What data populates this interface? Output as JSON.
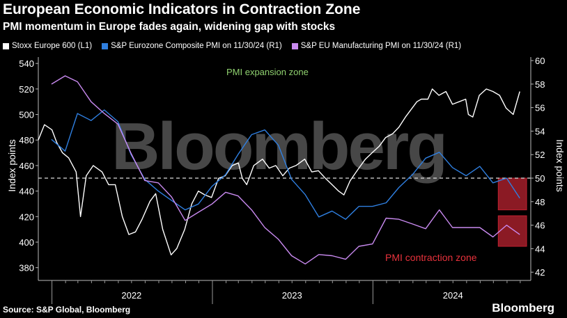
{
  "header": {
    "title": "European Economic Indicators in Contraction Zone",
    "subtitle": "PMI momentum in Europe fades again, widening gap with stocks"
  },
  "legend": [
    {
      "label": "Stoxx Europe 600 (L1)",
      "color": "#ffffff"
    },
    {
      "label": "S&P Eurozone Composite PMI on 11/30/24 (R1)",
      "color": "#2f7fe0"
    },
    {
      "label": "S&P EU Manufacturing PMI on 11/30/24 (R1)",
      "color": "#c98af0"
    }
  ],
  "footer": {
    "source": "Source: S&P Global, Bloomberg",
    "brand": "Bloomberg"
  },
  "watermark": "Bloomberg",
  "chart_data": {
    "type": "line",
    "x_years": [
      "2022",
      "2023",
      "2024"
    ],
    "y_left": {
      "label": "Index points",
      "ticks": [
        380,
        400,
        420,
        440,
        460,
        480,
        500,
        520,
        540
      ],
      "range": [
        370,
        545
      ]
    },
    "y_right": {
      "label": "Index points",
      "ticks": [
        42,
        44,
        46,
        48,
        50,
        52,
        54,
        56,
        58,
        60
      ],
      "range": [
        41.3,
        60.3
      ]
    },
    "reference_line": {
      "value": 50,
      "axis": "right"
    },
    "annotations": {
      "expansion": "PMI expansion zone",
      "contraction": "PMI contraction zone"
    },
    "colors": {
      "stoxx": "#ffffff",
      "composite": "#2f7fe0",
      "manufacturing": "#c98af0",
      "contraction_box": "#8b1a24",
      "contraction_text": "#e8323c",
      "expansion_text": "#8fd16f"
    },
    "series": [
      {
        "name": "Stoxx Europe 600 (L1)",
        "axis": "left",
        "x": [
          "2021-12-01",
          "2021-12-15",
          "2022-01-01",
          "2022-01-12",
          "2022-01-25",
          "2022-02-08",
          "2022-02-25",
          "2022-03-07",
          "2022-03-20",
          "2022-04-05",
          "2022-04-25",
          "2022-05-10",
          "2022-05-25",
          "2022-06-10",
          "2022-06-25",
          "2022-07-10",
          "2022-07-25",
          "2022-08-12",
          "2022-08-25",
          "2022-09-10",
          "2022-09-29",
          "2022-10-12",
          "2022-10-30",
          "2022-11-15",
          "2022-11-30",
          "2022-12-15",
          "2022-12-30",
          "2023-01-15",
          "2023-01-30",
          "2023-02-15",
          "2023-03-01",
          "2023-03-10",
          "2023-03-20",
          "2023-04-05",
          "2023-04-25",
          "2023-05-10",
          "2023-05-25",
          "2023-06-10",
          "2023-06-25",
          "2023-07-10",
          "2023-07-30",
          "2023-08-15",
          "2023-08-30",
          "2023-09-15",
          "2023-09-30",
          "2023-10-15",
          "2023-10-27",
          "2023-11-10",
          "2023-11-30",
          "2023-12-15",
          "2023-12-30",
          "2024-01-15",
          "2024-01-30",
          "2024-02-15",
          "2024-02-29",
          "2024-03-15",
          "2024-03-30",
          "2024-04-10",
          "2024-04-20",
          "2024-05-05",
          "2024-05-15",
          "2024-05-30",
          "2024-06-15",
          "2024-06-30",
          "2024-07-15",
          "2024-07-30",
          "2024-08-05",
          "2024-08-15",
          "2024-08-30",
          "2024-09-15",
          "2024-09-30",
          "2024-10-15",
          "2024-10-30",
          "2024-11-15",
          "2024-11-30"
        ],
        "values": [
          480,
          492,
          488,
          478,
          470,
          466,
          455,
          420,
          452,
          460,
          455,
          445,
          445,
          420,
          406,
          408,
          418,
          432,
          438,
          410,
          390,
          395,
          410,
          430,
          440,
          437,
          435,
          450,
          452,
          460,
          462,
          450,
          445,
          460,
          465,
          458,
          460,
          452,
          458,
          460,
          465,
          455,
          456,
          450,
          445,
          440,
          437,
          448,
          458,
          465,
          470,
          475,
          482,
          485,
          490,
          498,
          505,
          510,
          512,
          512,
          520,
          515,
          518,
          508,
          510,
          512,
          500,
          498,
          515,
          520,
          518,
          515,
          505,
          500,
          518
        ]
      },
      {
        "name": "S&P Eurozone Composite PMI on 11/30/24 (R1)",
        "axis": "right",
        "x": [
          "2021-12-31",
          "2022-01-31",
          "2022-02-28",
          "2022-03-31",
          "2022-04-30",
          "2022-05-31",
          "2022-06-30",
          "2022-07-31",
          "2022-08-31",
          "2022-09-30",
          "2022-10-31",
          "2022-11-30",
          "2022-12-31",
          "2023-01-31",
          "2023-02-28",
          "2023-03-31",
          "2023-04-30",
          "2023-05-31",
          "2023-06-30",
          "2023-07-31",
          "2023-08-31",
          "2023-09-30",
          "2023-10-31",
          "2023-11-30",
          "2023-12-31",
          "2024-01-31",
          "2024-02-29",
          "2024-03-31",
          "2024-04-30",
          "2024-05-31",
          "2024-06-30",
          "2024-07-31",
          "2024-08-31",
          "2024-09-30",
          "2024-10-31",
          "2024-11-30"
        ],
        "values": [
          53.3,
          52.3,
          55.5,
          54.9,
          55.8,
          54.8,
          52.0,
          49.9,
          48.9,
          48.1,
          47.3,
          47.8,
          49.3,
          50.3,
          52.0,
          53.7,
          54.1,
          52.8,
          49.9,
          48.6,
          46.7,
          47.2,
          46.5,
          47.6,
          47.6,
          47.9,
          49.2,
          50.3,
          51.7,
          52.2,
          50.9,
          50.2,
          51.0,
          49.6,
          50.0,
          48.3
        ]
      },
      {
        "name": "S&P EU Manufacturing PMI on 11/30/24 (R1)",
        "axis": "right",
        "x": [
          "2021-12-31",
          "2022-01-31",
          "2022-02-28",
          "2022-03-31",
          "2022-04-30",
          "2022-05-31",
          "2022-06-30",
          "2022-07-31",
          "2022-08-31",
          "2022-09-30",
          "2022-10-31",
          "2022-11-30",
          "2022-12-31",
          "2023-01-31",
          "2023-02-28",
          "2023-03-31",
          "2023-04-30",
          "2023-05-31",
          "2023-06-30",
          "2023-07-31",
          "2023-08-31",
          "2023-09-30",
          "2023-10-31",
          "2023-11-30",
          "2023-12-31",
          "2024-01-31",
          "2024-02-29",
          "2024-03-31",
          "2024-04-30",
          "2024-05-31",
          "2024-06-30",
          "2024-07-31",
          "2024-08-31",
          "2024-09-30",
          "2024-10-31",
          "2024-11-30"
        ],
        "values": [
          58.0,
          58.7,
          58.2,
          56.5,
          55.5,
          54.6,
          52.1,
          49.8,
          49.6,
          48.4,
          46.4,
          47.1,
          47.8,
          48.8,
          48.5,
          47.3,
          45.8,
          44.8,
          43.4,
          42.7,
          43.5,
          43.4,
          43.1,
          44.2,
          44.4,
          46.6,
          46.5,
          46.1,
          45.7,
          47.3,
          45.8,
          45.8,
          45.8,
          45.0,
          46.0,
          45.2
        ]
      }
    ]
  }
}
